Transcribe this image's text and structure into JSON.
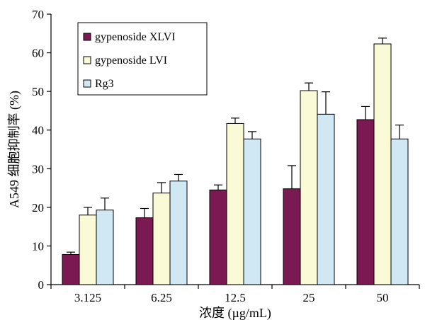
{
  "chart_data": {
    "type": "bar",
    "categories": [
      "3.125",
      "6.25",
      "12.5",
      "25",
      "50"
    ],
    "series": [
      {
        "name": "gypenoside XLVI",
        "color": "#7b1a52",
        "values": [
          7.8,
          17.3,
          24.5,
          24.8,
          42.7
        ],
        "errors": [
          0.6,
          2.4,
          1.3,
          6.0,
          3.4
        ]
      },
      {
        "name": "gypenoside LVI",
        "color": "#fafad6",
        "values": [
          18.0,
          23.7,
          41.7,
          50.2,
          62.3
        ],
        "errors": [
          2.0,
          2.7,
          1.4,
          2.0,
          1.5
        ]
      },
      {
        "name": "Rg3",
        "color": "#cfe8f4",
        "values": [
          19.3,
          26.8,
          37.7,
          44.1,
          37.7
        ],
        "errors": [
          3.1,
          1.7,
          1.9,
          5.8,
          3.6
        ]
      }
    ],
    "xlabel": "浓度 (µg/mL)",
    "ylabel": "A549 细胞抑制率 (%)",
    "ylim": [
      0,
      70
    ],
    "yticks": [
      "0",
      "10",
      "20",
      "30",
      "40",
      "50",
      "60",
      "70"
    ],
    "grid": false,
    "legend": "top-left"
  }
}
